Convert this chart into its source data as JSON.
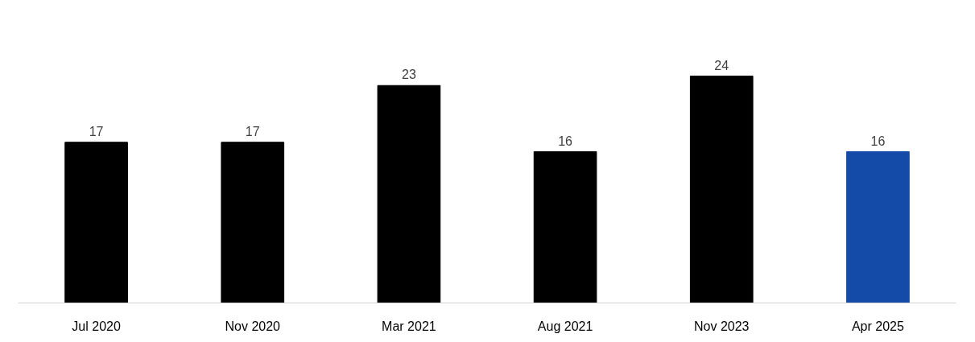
{
  "chart_data": {
    "type": "bar",
    "categories": [
      "Jul 2020",
      "Nov 2020",
      "Mar 2021",
      "Aug 2021",
      "Nov 2023",
      "Apr 2025"
    ],
    "values": [
      17,
      17,
      23,
      16,
      24,
      16
    ],
    "colors": [
      "#000000",
      "#000000",
      "#000000",
      "#000000",
      "#000000",
      "#154ba8"
    ],
    "data_labels": true
  }
}
